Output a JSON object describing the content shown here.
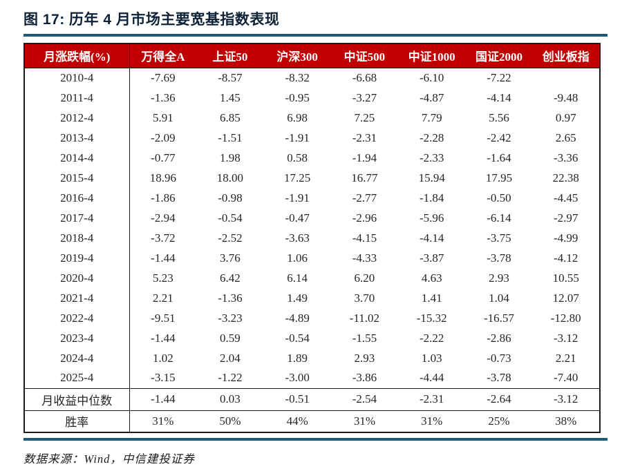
{
  "figure": {
    "title": "图 17:  历年 4 月市场主要宽基指数表现",
    "source_note": "数据来源：Wind，中信建投证券"
  },
  "colors": {
    "header_red": "#c00000",
    "rule_teal": "#1d5a73",
    "title_navy": "#0d2137",
    "body_text": "#262626"
  },
  "chart_data": {
    "type": "table",
    "title": "历年4月市场主要宽基指数表现",
    "columns": [
      "月涨跌幅(%)",
      "万得全A",
      "上证50",
      "沪深300",
      "中证500",
      "中证1000",
      "国证2000",
      "创业板指"
    ],
    "rows": [
      [
        "2010-4",
        "-7.69",
        "-8.57",
        "-8.32",
        "-6.68",
        "-6.10",
        "-7.22",
        ""
      ],
      [
        "2011-4",
        "-1.36",
        "1.45",
        "-0.95",
        "-3.27",
        "-4.87",
        "-4.14",
        "-9.48"
      ],
      [
        "2012-4",
        "5.91",
        "6.85",
        "6.98",
        "7.25",
        "7.79",
        "5.56",
        "0.97"
      ],
      [
        "2013-4",
        "-2.09",
        "-1.51",
        "-1.91",
        "-2.31",
        "-2.28",
        "-2.42",
        "2.65"
      ],
      [
        "2014-4",
        "-0.77",
        "1.98",
        "0.58",
        "-1.94",
        "-2.33",
        "-1.64",
        "-3.36"
      ],
      [
        "2015-4",
        "18.96",
        "18.00",
        "17.25",
        "16.77",
        "15.94",
        "17.95",
        "22.38"
      ],
      [
        "2016-4",
        "-1.86",
        "-0.98",
        "-1.91",
        "-2.77",
        "-1.84",
        "-0.50",
        "-4.45"
      ],
      [
        "2017-4",
        "-2.94",
        "-0.54",
        "-0.47",
        "-2.96",
        "-5.96",
        "-6.14",
        "-2.97"
      ],
      [
        "2018-4",
        "-3.72",
        "-2.52",
        "-3.63",
        "-4.15",
        "-4.14",
        "-3.75",
        "-4.99"
      ],
      [
        "2019-4",
        "-1.44",
        "3.76",
        "1.06",
        "-4.33",
        "-3.87",
        "-3.78",
        "-4.12"
      ],
      [
        "2020-4",
        "5.23",
        "6.42",
        "6.14",
        "6.20",
        "4.63",
        "2.93",
        "10.55"
      ],
      [
        "2021-4",
        "2.21",
        "-1.36",
        "1.49",
        "3.70",
        "1.41",
        "1.04",
        "12.07"
      ],
      [
        "2022-4",
        "-9.51",
        "-3.23",
        "-4.89",
        "-11.02",
        "-15.32",
        "-16.57",
        "-12.80"
      ],
      [
        "2023-4",
        "-1.44",
        "0.59",
        "-0.54",
        "-1.55",
        "-2.22",
        "-2.86",
        "-3.12"
      ],
      [
        "2024-4",
        "1.02",
        "2.04",
        "1.89",
        "2.93",
        "1.03",
        "-0.73",
        "2.21"
      ],
      [
        "2025-4",
        "-3.15",
        "-1.22",
        "-3.00",
        "-3.86",
        "-4.44",
        "-3.78",
        "-7.40"
      ]
    ],
    "summary_rows": [
      [
        "月收益中位数",
        "-1.44",
        "0.03",
        "-0.51",
        "-2.54",
        "-2.31",
        "-2.64",
        "-3.12"
      ],
      [
        "胜率",
        "31%",
        "50%",
        "44%",
        "31%",
        "31%",
        "25%",
        "38%"
      ]
    ]
  }
}
